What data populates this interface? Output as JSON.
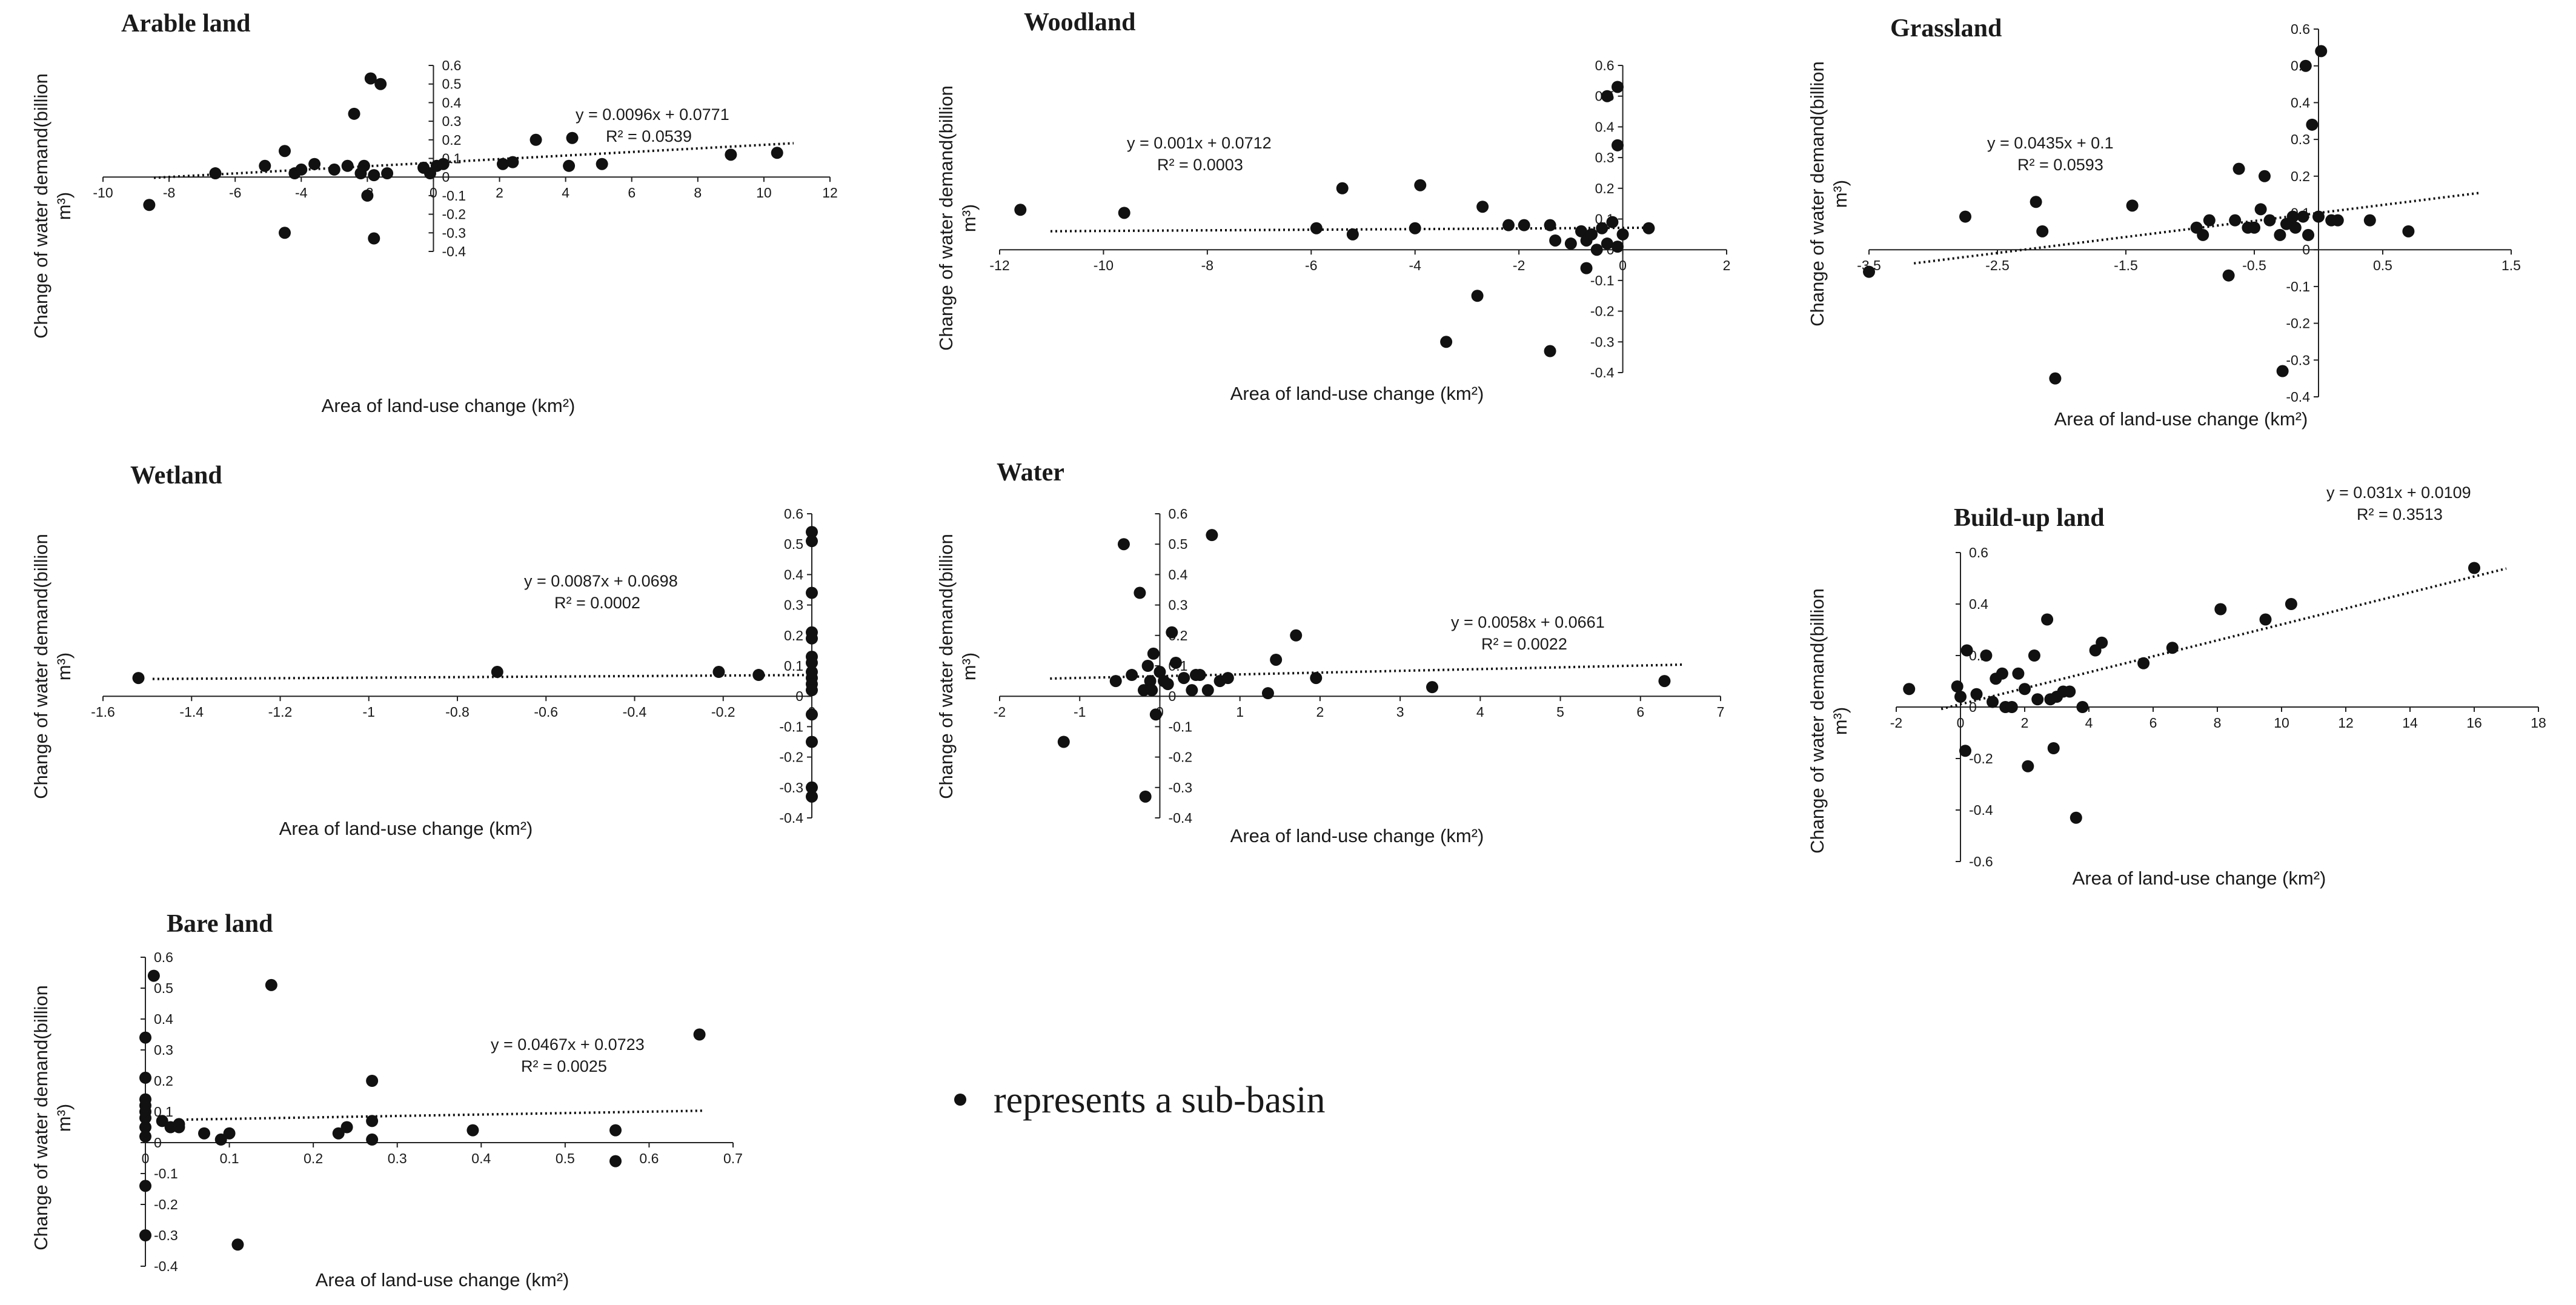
{
  "chart_data": [
    {
      "type": "scatter",
      "title": "Arable land",
      "xlabel": "Area of land-use change (km²)",
      "ylabel_line1": "Change of water demand(billion",
      "ylabel_line2": "m³)",
      "xlim": [
        -10,
        12
      ],
      "ylim": [
        -0.4,
        0.6
      ],
      "xticks": [
        -10,
        -8,
        -6,
        -4,
        -2,
        0,
        2,
        4,
        6,
        8,
        10,
        12
      ],
      "yticks": [
        -0.4,
        -0.3,
        -0.2,
        -0.1,
        0,
        0.1,
        0.2,
        0.3,
        0.4,
        0.5,
        0.6
      ],
      "equation": "y = 0.0096x + 0.0771",
      "r2": "R² = 0.0539",
      "trend": {
        "slope": 0.0096,
        "intercept": 0.0771
      },
      "points": [
        [
          -8.6,
          -0.15
        ],
        [
          -6.6,
          0.02
        ],
        [
          -5.1,
          0.06
        ],
        [
          -4.5,
          0.14
        ],
        [
          -4.5,
          -0.3
        ],
        [
          -4.2,
          0.02
        ],
        [
          -4.0,
          0.04
        ],
        [
          -3.6,
          0.07
        ],
        [
          -3.0,
          0.04
        ],
        [
          -2.6,
          0.06
        ],
        [
          -2.4,
          0.34
        ],
        [
          -2.2,
          0.02
        ],
        [
          -2.1,
          0.06
        ],
        [
          -2.0,
          -0.1
        ],
        [
          -1.8,
          0.01
        ],
        [
          -1.9,
          0.53
        ],
        [
          -1.8,
          -0.33
        ],
        [
          -1.6,
          0.5
        ],
        [
          -1.4,
          0.02
        ],
        [
          -0.3,
          0.05
        ],
        [
          -0.1,
          0.02
        ],
        [
          0.1,
          0.06
        ],
        [
          0.3,
          0.07
        ],
        [
          2.1,
          0.07
        ],
        [
          2.4,
          0.08
        ],
        [
          3.1,
          0.2
        ],
        [
          4.1,
          0.06
        ],
        [
          4.2,
          0.21
        ],
        [
          5.1,
          0.07
        ],
        [
          9.0,
          0.12
        ],
        [
          10.4,
          0.13
        ]
      ]
    },
    {
      "type": "scatter",
      "title": "Woodland",
      "xlabel": "Area of land-use change (km²)",
      "ylabel_line1": "Change of water demand(billion",
      "ylabel_line2": "m³)",
      "xlim": [
        -12,
        2
      ],
      "ylim": [
        -0.4,
        0.6
      ],
      "xticks": [
        -12,
        -10,
        -8,
        -6,
        -4,
        -2,
        0,
        2
      ],
      "yticks": [
        -0.4,
        -0.3,
        -0.2,
        -0.1,
        0,
        0.1,
        0.2,
        0.3,
        0.4,
        0.5,
        0.6
      ],
      "equation": "y = 0.001x + 0.0712",
      "r2": "R² = 0.0003",
      "trend": {
        "slope": 0.001,
        "intercept": 0.0712
      },
      "points": [
        [
          -11.6,
          0.13
        ],
        [
          -9.6,
          0.12
        ],
        [
          -5.9,
          0.07
        ],
        [
          -5.4,
          0.2
        ],
        [
          -5.2,
          0.05
        ],
        [
          -4.0,
          0.07
        ],
        [
          -3.9,
          0.21
        ],
        [
          -3.4,
          -0.3
        ],
        [
          -2.8,
          -0.15
        ],
        [
          -2.7,
          0.14
        ],
        [
          -2.2,
          0.08
        ],
        [
          -1.9,
          0.08
        ],
        [
          -1.4,
          0.08
        ],
        [
          -1.3,
          0.03
        ],
        [
          -1.0,
          0.02
        ],
        [
          -0.8,
          0.06
        ],
        [
          -0.7,
          -0.06
        ],
        [
          -0.7,
          0.03
        ],
        [
          -0.6,
          0.05
        ],
        [
          -0.5,
          0.0
        ],
        [
          -1.4,
          -0.33
        ],
        [
          -0.4,
          0.07
        ],
        [
          -0.3,
          0.02
        ],
        [
          -0.3,
          0.5
        ],
        [
          -0.2,
          0.09
        ],
        [
          -0.1,
          0.53
        ],
        [
          -0.1,
          0.34
        ],
        [
          -0.1,
          0.01
        ],
        [
          0.0,
          0.05
        ],
        [
          0.5,
          0.07
        ]
      ]
    },
    {
      "type": "scatter",
      "title": "Grassland",
      "xlabel": "Area of land-use change (km²)",
      "ylabel_line1": "Change of water demand(billion",
      "ylabel_line2": "m³)",
      "xlim": [
        -3.5,
        1.5
      ],
      "ylim": [
        -0.4,
        0.6
      ],
      "xticks": [
        -3.5,
        -2.5,
        -1.5,
        -0.5,
        0.5,
        1.5
      ],
      "xtick_labels": [
        "-3.5",
        "-2.5",
        "-1.5",
        "-0.5",
        "0.5",
        "1.5"
      ],
      "yticks": [
        -0.4,
        -0.3,
        -0.2,
        -0.1,
        0,
        0.1,
        0.2,
        0.3,
        0.4,
        0.5,
        0.6
      ],
      "equation": "y = 0.0435x + 0.1",
      "r2": "R² = 0.0593",
      "trend": {
        "slope": 0.0435,
        "intercept": 0.1
      },
      "points": [
        [
          -3.5,
          -0.06
        ],
        [
          -2.75,
          0.09
        ],
        [
          -2.2,
          0.13
        ],
        [
          -2.15,
          0.05
        ],
        [
          -2.05,
          -0.35
        ],
        [
          -1.45,
          0.12
        ],
        [
          -0.95,
          0.06
        ],
        [
          -0.9,
          0.04
        ],
        [
          -0.85,
          0.08
        ],
        [
          -0.7,
          -0.07
        ],
        [
          -0.65,
          0.08
        ],
        [
          -0.62,
          0.22
        ],
        [
          -0.55,
          0.06
        ],
        [
          -0.5,
          0.06
        ],
        [
          -0.45,
          0.11
        ],
        [
          -0.42,
          0.2
        ],
        [
          -0.38,
          0.08
        ],
        [
          -0.3,
          0.04
        ],
        [
          -0.28,
          -0.33
        ],
        [
          -0.25,
          0.07
        ],
        [
          -0.2,
          0.09
        ],
        [
          -0.18,
          0.06
        ],
        [
          -0.12,
          0.09
        ],
        [
          -0.1,
          0.5
        ],
        [
          -0.08,
          0.04
        ],
        [
          -0.05,
          0.34
        ],
        [
          0.0,
          0.09
        ],
        [
          0.02,
          0.54
        ],
        [
          0.1,
          0.08
        ],
        [
          0.15,
          0.08
        ],
        [
          0.4,
          0.08
        ],
        [
          0.7,
          0.05
        ]
      ]
    },
    {
      "type": "scatter",
      "title": "Wetland",
      "xlabel": "Area of land-use change (km²)",
      "ylabel_line1": "Change of water demand(billion",
      "ylabel_line2": "m³)",
      "xlim": [
        -1.6,
        0
      ],
      "ylim": [
        -0.4,
        0.6
      ],
      "xticks": [
        -1.6,
        -1.4,
        -1.2,
        -1,
        -0.8,
        -0.6,
        -0.4,
        -0.2,
        0
      ],
      "yticks": [
        -0.4,
        -0.3,
        -0.2,
        -0.1,
        0,
        0.1,
        0.2,
        0.3,
        0.4,
        0.5,
        0.6
      ],
      "equation": "y = 0.0087x + 0.0698",
      "r2": "R² = 0.0002",
      "trend": {
        "slope": 0.0087,
        "intercept": 0.0698
      },
      "points": [
        [
          -1.52,
          0.06
        ],
        [
          -0.71,
          0.08
        ],
        [
          -0.21,
          0.08
        ],
        [
          -0.12,
          0.07
        ],
        [
          0,
          0.54
        ],
        [
          0,
          0.51
        ],
        [
          0,
          0.34
        ],
        [
          0,
          0.21
        ],
        [
          0,
          0.19
        ],
        [
          0,
          0.13
        ],
        [
          0,
          0.11
        ],
        [
          0,
          0.08
        ],
        [
          0,
          0.06
        ],
        [
          0,
          0.04
        ],
        [
          0,
          0.02
        ],
        [
          0,
          -0.06
        ],
        [
          0,
          -0.15
        ],
        [
          0,
          -0.3
        ],
        [
          0,
          -0.33
        ]
      ]
    },
    {
      "type": "scatter",
      "title": "Water",
      "xlabel": "Area of land-use change (km²)",
      "ylabel_line1": "Change of water demand(billion",
      "ylabel_line2": "m³)",
      "xlim": [
        -2,
        7
      ],
      "ylim": [
        -0.4,
        0.6
      ],
      "xticks": [
        -2,
        -1,
        0,
        1,
        2,
        3,
        4,
        5,
        6,
        7
      ],
      "yticks": [
        -0.4,
        -0.3,
        -0.2,
        -0.1,
        0,
        0.1,
        0.2,
        0.3,
        0.4,
        0.5,
        0.6
      ],
      "equation": "y = 0.0058x + 0.0661",
      "r2": "R² = 0.0022",
      "trend": {
        "slope": 0.0058,
        "intercept": 0.0661
      },
      "points": [
        [
          -1.2,
          -0.15
        ],
        [
          -0.55,
          0.05
        ],
        [
          -0.45,
          0.5
        ],
        [
          -0.35,
          0.07
        ],
        [
          -0.25,
          0.34
        ],
        [
          -0.2,
          0.02
        ],
        [
          -0.18,
          -0.33
        ],
        [
          -0.15,
          0.1
        ],
        [
          -0.12,
          0.05
        ],
        [
          -0.1,
          0.02
        ],
        [
          -0.08,
          0.14
        ],
        [
          -0.05,
          -0.06
        ],
        [
          0.0,
          0.08
        ],
        [
          0.05,
          0.05
        ],
        [
          0.1,
          0.04
        ],
        [
          0.15,
          0.21
        ],
        [
          0.2,
          0.11
        ],
        [
          0.3,
          0.06
        ],
        [
          0.4,
          0.02
        ],
        [
          0.45,
          0.07
        ],
        [
          0.5,
          0.07
        ],
        [
          0.6,
          0.02
        ],
        [
          0.65,
          0.53
        ],
        [
          0.75,
          0.05
        ],
        [
          0.85,
          0.06
        ],
        [
          1.35,
          0.01
        ],
        [
          1.45,
          0.12
        ],
        [
          1.7,
          0.2
        ],
        [
          1.95,
          0.06
        ],
        [
          3.4,
          0.03
        ],
        [
          6.3,
          0.05
        ]
      ]
    },
    {
      "type": "scatter",
      "title": "Build-up land",
      "xlabel": "Area of land-use change (km²)",
      "ylabel_line1": "Change of water demand(billion",
      "ylabel_line2": "m³)",
      "xlim": [
        -2,
        18
      ],
      "ylim": [
        -0.6,
        0.6
      ],
      "xticks": [
        -2,
        0,
        2,
        4,
        6,
        8,
        10,
        12,
        14,
        16,
        18
      ],
      "yticks": [
        -0.6,
        -0.4,
        -0.2,
        0,
        0.2,
        0.4,
        0.6
      ],
      "equation": "y = 0.031x + 0.0109",
      "r2": "R² = 0.3513",
      "trend": {
        "slope": 0.031,
        "intercept": 0.0109
      },
      "points": [
        [
          -1.6,
          0.07
        ],
        [
          -0.1,
          0.08
        ],
        [
          0.0,
          0.04
        ],
        [
          0.15,
          -0.17
        ],
        [
          0.2,
          0.22
        ],
        [
          0.5,
          0.05
        ],
        [
          0.8,
          0.2
        ],
        [
          1.0,
          0.02
        ],
        [
          1.1,
          0.11
        ],
        [
          1.3,
          0.13
        ],
        [
          1.4,
          0.0
        ],
        [
          1.6,
          0.0
        ],
        [
          1.8,
          0.13
        ],
        [
          2.0,
          0.07
        ],
        [
          2.1,
          -0.23
        ],
        [
          2.3,
          0.2
        ],
        [
          2.4,
          0.03
        ],
        [
          2.7,
          0.34
        ],
        [
          2.8,
          0.03
        ],
        [
          2.9,
          -0.16
        ],
        [
          3.0,
          0.04
        ],
        [
          3.2,
          0.06
        ],
        [
          3.4,
          0.06
        ],
        [
          3.6,
          -0.43
        ],
        [
          3.8,
          0.0
        ],
        [
          4.2,
          0.22
        ],
        [
          4.4,
          0.25
        ],
        [
          5.7,
          0.17
        ],
        [
          6.6,
          0.23
        ],
        [
          8.1,
          0.38
        ],
        [
          9.5,
          0.34
        ],
        [
          10.3,
          0.4
        ],
        [
          16.0,
          0.54
        ]
      ]
    },
    {
      "type": "scatter",
      "title": "Bare land",
      "xlabel": "Area of land-use change (km²)",
      "ylabel_line1": "Change of water demand(billion",
      "ylabel_line2": "m³)",
      "xlim": [
        0,
        0.7
      ],
      "ylim": [
        -0.4,
        0.6
      ],
      "xticks": [
        0,
        0.1,
        0.2,
        0.3,
        0.4,
        0.5,
        0.6,
        0.7
      ],
      "yticks": [
        -0.4,
        -0.3,
        -0.2,
        -0.1,
        0,
        0.1,
        0.2,
        0.3,
        0.4,
        0.5,
        0.6
      ],
      "equation": "y = 0.0467x + 0.0723",
      "r2": "R² = 0.0025",
      "trend": {
        "slope": 0.0467,
        "intercept": 0.0723
      },
      "points": [
        [
          0.0,
          0.34
        ],
        [
          0.0,
          0.21
        ],
        [
          0.0,
          0.14
        ],
        [
          0.0,
          0.12
        ],
        [
          0.0,
          0.1
        ],
        [
          0.0,
          0.08
        ],
        [
          0.0,
          0.05
        ],
        [
          0.0,
          0.02
        ],
        [
          0.0,
          -0.14
        ],
        [
          0.0,
          -0.3
        ],
        [
          0.01,
          0.54
        ],
        [
          0.02,
          0.07
        ],
        [
          0.03,
          0.05
        ],
        [
          0.04,
          0.06
        ],
        [
          0.04,
          0.05
        ],
        [
          0.07,
          0.03
        ],
        [
          0.09,
          0.01
        ],
        [
          0.1,
          0.03
        ],
        [
          0.11,
          -0.33
        ],
        [
          0.15,
          0.51
        ],
        [
          0.23,
          0.03
        ],
        [
          0.24,
          0.05
        ],
        [
          0.27,
          0.2
        ],
        [
          0.27,
          0.07
        ],
        [
          0.27,
          0.01
        ],
        [
          0.39,
          0.04
        ],
        [
          0.56,
          0.04
        ],
        [
          0.56,
          -0.06
        ],
        [
          0.66,
          0.35
        ]
      ]
    }
  ],
  "legend": {
    "marker": "•",
    "text": "represents a sub-basin"
  }
}
